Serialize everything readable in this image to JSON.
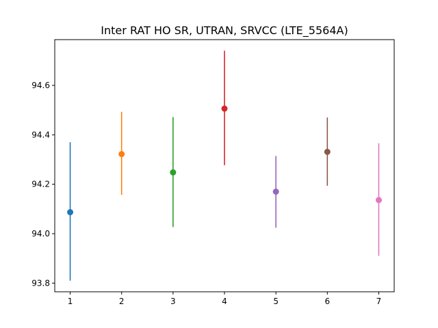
{
  "chart_data": {
    "type": "scatter",
    "title": "Inter RAT HO SR, UTRAN, SRVCC (LTE_5564A)",
    "xlabel": "",
    "ylabel": "",
    "x_ticks": [
      "1",
      "2",
      "3",
      "4",
      "5",
      "6",
      "7"
    ],
    "y_ticks": [
      "93.8",
      "94.0",
      "94.2",
      "94.4",
      "94.6"
    ],
    "xlim": [
      0.7,
      7.3
    ],
    "ylim": [
      93.765,
      94.785
    ],
    "grid": false,
    "points": [
      {
        "x": 1,
        "y": 94.087,
        "low": 93.81,
        "high": 94.37,
        "color": "#1f77b4"
      },
      {
        "x": 2,
        "y": 94.322,
        "low": 94.157,
        "high": 94.493,
        "color": "#ff7f0e"
      },
      {
        "x": 3,
        "y": 94.248,
        "low": 94.027,
        "high": 94.472,
        "color": "#2ca02c"
      },
      {
        "x": 4,
        "y": 94.506,
        "low": 94.277,
        "high": 94.74,
        "color": "#d62728"
      },
      {
        "x": 5,
        "y": 94.17,
        "low": 94.024,
        "high": 94.314,
        "color": "#9467bd"
      },
      {
        "x": 6,
        "y": 94.331,
        "low": 94.194,
        "high": 94.47,
        "color": "#8c564b"
      },
      {
        "x": 7,
        "y": 94.136,
        "low": 93.91,
        "high": 94.366,
        "color": "#e377c2"
      }
    ]
  }
}
